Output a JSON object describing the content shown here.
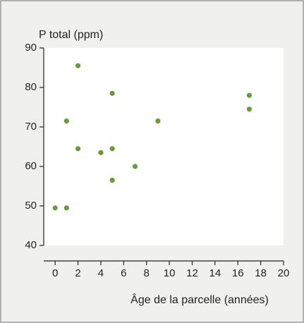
{
  "chart_data": {
    "type": "scatter",
    "y_label": "P total (ppm)",
    "x_label": "Âge de la parcelle (années)",
    "series": [
      {
        "color": "#6b9a3e",
        "x": [
          0,
          1,
          1,
          2,
          2,
          4,
          5,
          5,
          5,
          7,
          9,
          17,
          17
        ],
        "values": [
          49.5,
          49.5,
          71.5,
          85.5,
          64.5,
          63.5,
          78.5,
          64.5,
          56.5,
          60,
          71.5,
          78,
          74.5
        ]
      }
    ],
    "xlim": [
      -1,
      20
    ],
    "ylim": [
      40,
      90
    ],
    "xticks": [
      0,
      2,
      4,
      6,
      8,
      10,
      12,
      14,
      16,
      18,
      20
    ],
    "yticks": [
      40,
      50,
      60,
      70,
      80,
      90
    ]
  }
}
